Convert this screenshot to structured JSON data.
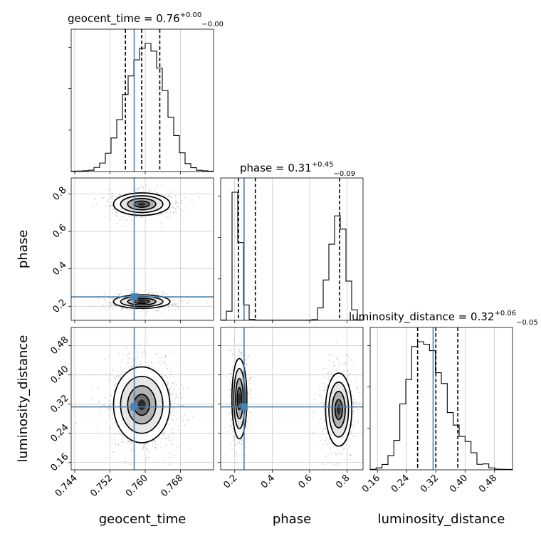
{
  "chart_data": {
    "type": "corner",
    "params": [
      "geocent_time",
      "phase",
      "luminosity_distance"
    ],
    "axis_labels": [
      "geocent_time",
      "phase",
      "luminosity_distance"
    ],
    "ranges": [
      [
        0.7432,
        0.7755
      ],
      [
        0.125,
        0.885
      ],
      [
        0.14,
        0.53
      ]
    ],
    "ticks": [
      [
        0.744,
        0.752,
        0.76,
        0.768
      ],
      [
        0.2,
        0.4,
        0.6,
        0.8
      ],
      [
        0.16,
        0.24,
        0.32,
        0.4,
        0.48
      ]
    ],
    "tick_labels": [
      [
        "0.744",
        "0.752",
        "0.760",
        "0.768"
      ],
      [
        "0.2",
        "0.4",
        "0.6",
        "0.8"
      ],
      [
        "0.16",
        "0.24",
        "0.32",
        "0.40",
        "0.48"
      ]
    ],
    "truths": [
      0.7575,
      0.25,
      0.3125
    ],
    "titles": [
      {
        "label": "geocent_time = 0.76",
        "sup": "+0.00",
        "sub": "−0.00"
      },
      {
        "label": "phase = 0.31",
        "sup": "+0.45",
        "sub": "−0.09"
      },
      {
        "label": "luminosity_distance = 0.32",
        "sup": "+0.06",
        "sub": "−0.05"
      }
    ],
    "quantiles": [
      [
        0.7555,
        0.7592,
        0.7633
      ],
      [
        0.22,
        0.31,
        0.76
      ],
      [
        0.27,
        0.32,
        0.38
      ]
    ],
    "histograms": [
      [
        0.3,
        0.4,
        0.6,
        1.0,
        3.2,
        6.6,
        14.3,
        26.2,
        40.5,
        60.2,
        74.6,
        87.2,
        96.2,
        100,
        94.0,
        80.7,
        63.2,
        42.4,
        28.1,
        14.6,
        6.2,
        3.0,
        1.0,
        0.6,
        0.3
      ],
      [
        0.2,
        7.1,
        100,
        60.8,
        12.0,
        0.8,
        0.2,
        0.1,
        0.1,
        0.1,
        0.1,
        0.1,
        0.1,
        0.1,
        0.1,
        0.2,
        0.6,
        9.7,
        31.5,
        59.4,
        81.5,
        71.2,
        30.6,
        8.2,
        0.3
      ],
      [
        0.4,
        1.5,
        4.2,
        11.1,
        23.0,
        51.4,
        70.5,
        96.2,
        100,
        98.0,
        93.0,
        75.8,
        67.3,
        44.7,
        34.9,
        26.1,
        22.1,
        13.3,
        4.3,
        4.6,
        1.5,
        0.5,
        0.4,
        0.3
      ]
    ],
    "grid": true,
    "colors": {
      "truth": "#4682b4",
      "hist": "#000000",
      "grid": "#c8c8c8",
      "scatter": "#7f7f7f"
    }
  }
}
